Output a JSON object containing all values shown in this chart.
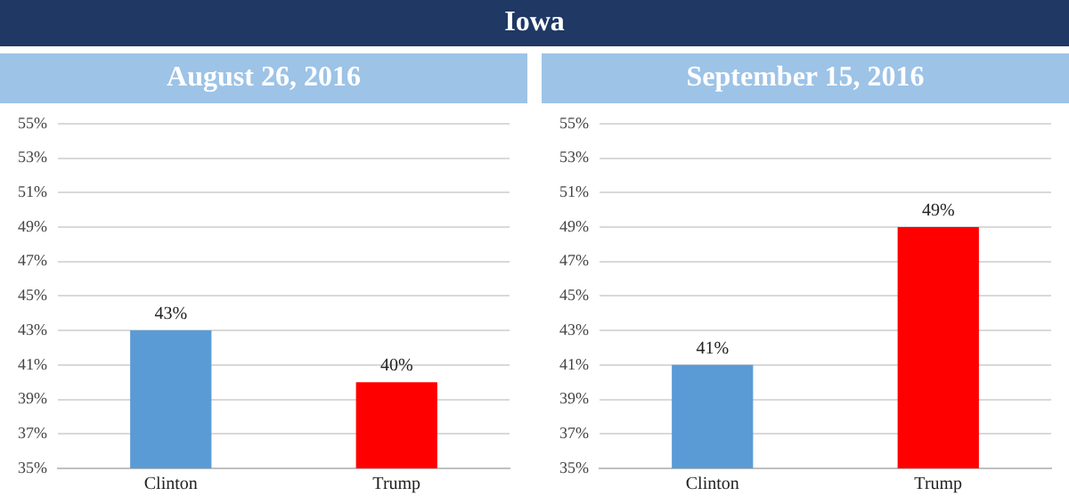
{
  "chart_data": [
    {
      "type": "bar",
      "annotations": [
        "Iowa"
      ],
      "title": "August 26, 2016",
      "categories": [
        "Clinton",
        "Trump"
      ],
      "values": [
        43,
        40
      ],
      "colors": [
        "#5b9bd5",
        "#ff0000"
      ],
      "value_labels": [
        "43%",
        "40%"
      ],
      "ylim": [
        35,
        55
      ],
      "yticks": [
        {
          "value": 35,
          "label": "35%"
        },
        {
          "value": 37,
          "label": "37%"
        },
        {
          "value": 39,
          "label": "39%"
        },
        {
          "value": 41,
          "label": "41%"
        },
        {
          "value": 43,
          "label": "43%"
        },
        {
          "value": 45,
          "label": "45%"
        },
        {
          "value": 47,
          "label": "47%"
        },
        {
          "value": 49,
          "label": "49%"
        },
        {
          "value": 51,
          "label": "51%"
        },
        {
          "value": 53,
          "label": "53%"
        },
        {
          "value": 55,
          "label": "55%"
        }
      ],
      "grid": "y"
    },
    {
      "type": "bar",
      "title": "September 15, 2016",
      "categories": [
        "Clinton",
        "Trump"
      ],
      "values": [
        41,
        49
      ],
      "colors": [
        "#5b9bd5",
        "#ff0000"
      ],
      "value_labels": [
        "41%",
        "49%"
      ],
      "ylim": [
        35,
        55
      ],
      "yticks": [
        {
          "value": 35,
          "label": "35%"
        },
        {
          "value": 37,
          "label": "37%"
        },
        {
          "value": 39,
          "label": "39%"
        },
        {
          "value": 41,
          "label": "41%"
        },
        {
          "value": 43,
          "label": "43%"
        },
        {
          "value": 45,
          "label": "45%"
        },
        {
          "value": 47,
          "label": "47%"
        },
        {
          "value": 49,
          "label": "49%"
        },
        {
          "value": 51,
          "label": "51%"
        },
        {
          "value": 53,
          "label": "53%"
        },
        {
          "value": 55,
          "label": "55%"
        }
      ],
      "grid": "y"
    }
  ]
}
